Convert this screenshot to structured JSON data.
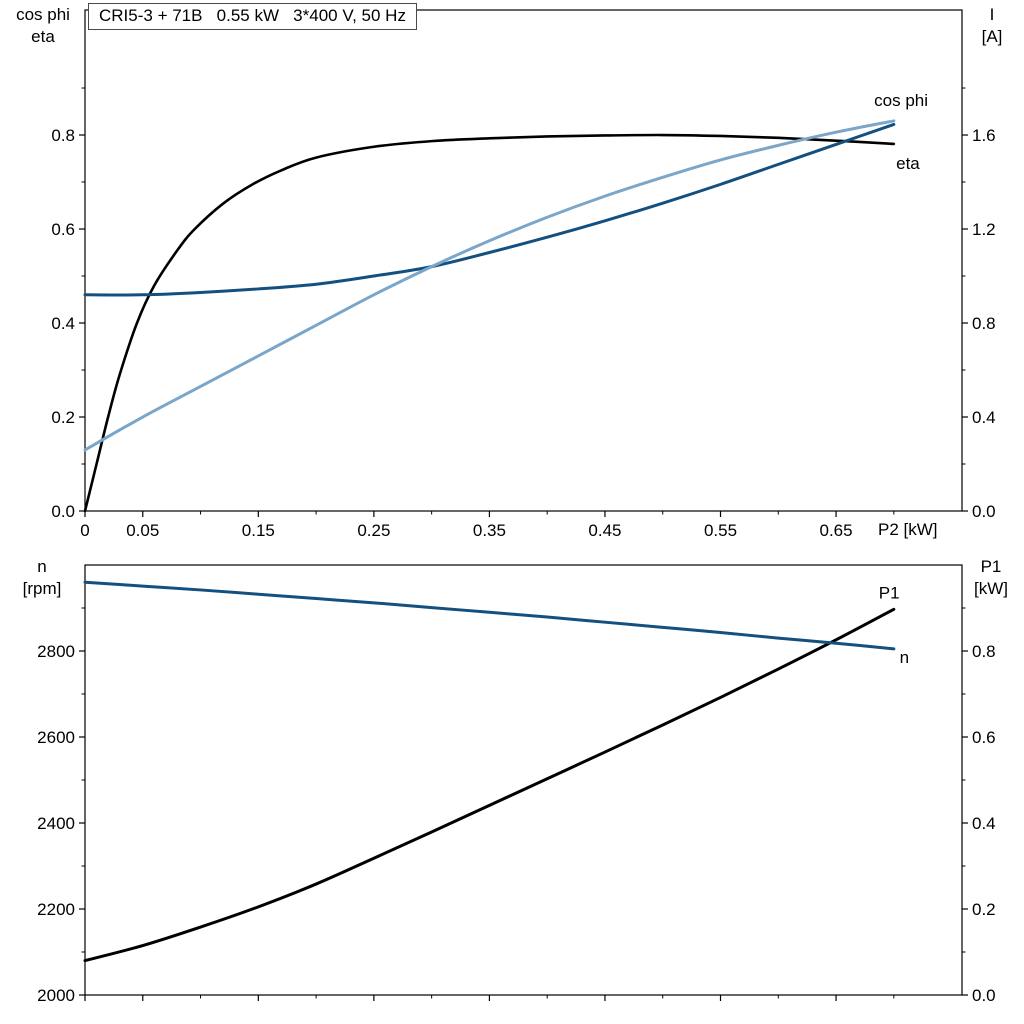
{
  "figure": {
    "title_box": "CRI5-3 + 71B   0.55 kW   3*400 V, 50 Hz",
    "top_left_header": {
      "line1": "cos phi",
      "line2": "eta"
    },
    "top_right_header": {
      "line1": "I",
      "line2": "[A]"
    },
    "bottom_left_header": {
      "line1": "n",
      "line2": "[rpm]"
    },
    "bottom_right_header": {
      "line1": "P1",
      "line2": "[kW]"
    },
    "x_axis_label": "P2 [kW]"
  },
  "colors": {
    "black_curve": "#000000",
    "light_blue_curve": "#7aa6ca",
    "dark_blue_curve": "#14507f",
    "axis": "#000000",
    "title_border": "#4a4a4a"
  },
  "chart_data": [
    {
      "type": "line",
      "panel": "top",
      "title": "CRI5-3 + 71B   0.55 kW   3*400 V, 50 Hz",
      "x_label": "P2 [kW]",
      "y_left_label": "cos phi / eta",
      "y_right_label": "I [A]",
      "x_range": [
        0,
        0.759
      ],
      "y_left_range": [
        0,
        1.066
      ],
      "y_right_range": [
        0,
        2.132
      ],
      "grid": false,
      "legend": "inline-curve-labels",
      "x_major_ticks": [
        {
          "v": 0,
          "label": "0"
        },
        {
          "v": 0.05,
          "label": "0.05"
        },
        {
          "v": 0.15,
          "label": "0.15"
        },
        {
          "v": 0.25,
          "label": "0.25"
        },
        {
          "v": 0.35,
          "label": "0.35"
        },
        {
          "v": 0.45,
          "label": "0.45"
        },
        {
          "v": 0.55,
          "label": "0.55"
        },
        {
          "v": 0.65,
          "label": "0.65"
        }
      ],
      "x_minor_ticks": [
        0.1,
        0.2,
        0.3,
        0.4,
        0.5,
        0.6,
        0.7
      ],
      "y_left_major_ticks": [
        {
          "v": 0,
          "label": "0.0"
        },
        {
          "v": 0.2,
          "label": "0.2"
        },
        {
          "v": 0.4,
          "label": "0.4"
        },
        {
          "v": 0.6,
          "label": "0.6"
        },
        {
          "v": 0.8,
          "label": "0.8"
        }
      ],
      "y_left_minor_ticks": [
        0.1,
        0.3,
        0.5,
        0.7,
        0.9
      ],
      "y_right_major_ticks": [
        {
          "v": 0,
          "label": "0.0"
        },
        {
          "v": 0.4,
          "label": "0.4"
        },
        {
          "v": 0.8,
          "label": "0.8"
        },
        {
          "v": 1.2,
          "label": "1.2"
        },
        {
          "v": 1.6,
          "label": "1.6"
        }
      ],
      "y_right_minor_ticks": [
        0.2,
        0.6,
        1.0,
        1.4,
        1.8
      ],
      "series": [
        {
          "name": "eta",
          "axis": "left",
          "color_key": "black_curve",
          "width": 2.6,
          "label": "eta",
          "label_pos": [
            0.702,
            0.728
          ],
          "x": [
            0,
            0.01,
            0.02,
            0.03,
            0.045,
            0.06,
            0.08,
            0.095,
            0.12,
            0.145,
            0.17,
            0.2,
            0.25,
            0.3,
            0.35,
            0.4,
            0.45,
            0.5,
            0.55,
            0.6,
            0.65,
            0.7
          ],
          "y": [
            0,
            0.1,
            0.2,
            0.29,
            0.4,
            0.48,
            0.555,
            0.6,
            0.655,
            0.695,
            0.725,
            0.752,
            0.775,
            0.787,
            0.793,
            0.797,
            0.799,
            0.8,
            0.798,
            0.794,
            0.788,
            0.781
          ]
        },
        {
          "name": "I",
          "axis": "right",
          "color_key": "dark_blue_curve",
          "width": 3,
          "x": [
            0,
            0.05,
            0.1,
            0.15,
            0.2,
            0.25,
            0.3,
            0.35,
            0.4,
            0.45,
            0.5,
            0.55,
            0.6,
            0.65,
            0.7
          ],
          "y": [
            0.92,
            0.92,
            0.93,
            0.945,
            0.965,
            1.0,
            1.04,
            1.1,
            1.165,
            1.235,
            1.31,
            1.39,
            1.475,
            1.56,
            1.645
          ]
        },
        {
          "name": "cos phi",
          "axis": "left",
          "color_key": "light_blue_curve",
          "width": 3,
          "label": "cos phi",
          "label_pos": [
            0.683,
            0.862
          ],
          "x": [
            0,
            0.05,
            0.1,
            0.15,
            0.2,
            0.25,
            0.3,
            0.35,
            0.4,
            0.45,
            0.5,
            0.55,
            0.6,
            0.65,
            0.7
          ],
          "y": [
            0.13,
            0.2,
            0.265,
            0.33,
            0.395,
            0.46,
            0.52,
            0.575,
            0.625,
            0.67,
            0.71,
            0.747,
            0.778,
            0.806,
            0.83
          ]
        }
      ]
    },
    {
      "type": "line",
      "panel": "bottom",
      "y_left_label": "n [rpm]",
      "y_right_label": "P1 [kW]",
      "x_range": [
        0,
        0.759
      ],
      "y_left_range": [
        2000,
        3000
      ],
      "y_right_range": [
        0,
        1.0
      ],
      "grid": false,
      "legend": "inline-curve-labels",
      "x_major_ticks": [
        {
          "v": 0
        },
        {
          "v": 0.05
        },
        {
          "v": 0.15
        },
        {
          "v": 0.25
        },
        {
          "v": 0.35
        },
        {
          "v": 0.45
        },
        {
          "v": 0.55
        },
        {
          "v": 0.65
        }
      ],
      "x_minor_ticks": [
        0.1,
        0.2,
        0.3,
        0.4,
        0.5,
        0.6,
        0.7
      ],
      "y_left_major_ticks": [
        {
          "v": 2000,
          "label": "2000"
        },
        {
          "v": 2200,
          "label": "2200"
        },
        {
          "v": 2400,
          "label": "2400"
        },
        {
          "v": 2600,
          "label": "2600"
        },
        {
          "v": 2800,
          "label": "2800"
        }
      ],
      "y_left_minor_ticks": [
        2100,
        2300,
        2500,
        2700,
        2900
      ],
      "y_right_major_ticks": [
        {
          "v": 0,
          "label": "0.0"
        },
        {
          "v": 0.2,
          "label": "0.2"
        },
        {
          "v": 0.4,
          "label": "0.4"
        },
        {
          "v": 0.6,
          "label": "0.6"
        },
        {
          "v": 0.8,
          "label": "0.8"
        }
      ],
      "y_right_minor_ticks": [
        0.1,
        0.3,
        0.5,
        0.7,
        0.9
      ],
      "series": [
        {
          "name": "P1",
          "axis": "right",
          "color_key": "black_curve",
          "width": 3,
          "label": "P1",
          "label_pos": [
            0.687,
            0.922
          ],
          "x": [
            0,
            0.05,
            0.1,
            0.15,
            0.2,
            0.25,
            0.3,
            0.35,
            0.4,
            0.45,
            0.5,
            0.55,
            0.6,
            0.65,
            0.7
          ],
          "y": [
            0.08,
            0.115,
            0.158,
            0.205,
            0.258,
            0.318,
            0.379,
            0.441,
            0.503,
            0.565,
            0.628,
            0.692,
            0.758,
            0.826,
            0.897
          ]
        },
        {
          "name": "n",
          "axis": "left",
          "color_key": "dark_blue_curve",
          "width": 3,
          "label": "n",
          "label_pos": [
            0.705,
            2772
          ],
          "x": [
            0,
            0.05,
            0.1,
            0.15,
            0.2,
            0.25,
            0.3,
            0.35,
            0.4,
            0.45,
            0.5,
            0.55,
            0.6,
            0.65,
            0.7
          ],
          "y": [
            2960,
            2951,
            2942,
            2932,
            2922,
            2912,
            2901,
            2890,
            2879,
            2867,
            2855,
            2843,
            2830,
            2818,
            2805
          ]
        }
      ]
    }
  ]
}
